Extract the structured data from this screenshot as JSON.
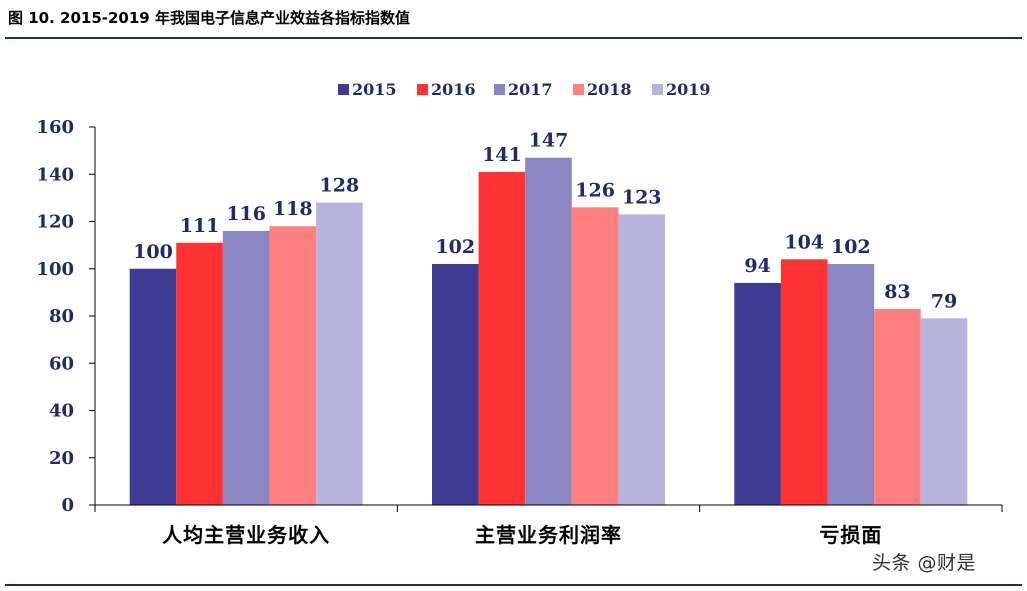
{
  "figure": {
    "title": "图 10. 2015-2019 年我国电子信息产业效益各指标指数值"
  },
  "watermark": "头条 @财是",
  "chart_data": {
    "type": "bar",
    "title": "",
    "xlabel": "",
    "ylabel": "",
    "categories": [
      "人均主营业务收入",
      "主营业务利润率",
      "亏损面"
    ],
    "series": [
      {
        "name": "2015",
        "color": "#3f3a93",
        "values": [
          100,
          102,
          94
        ]
      },
      {
        "name": "2016",
        "color": "#ff3333",
        "values": [
          111,
          141,
          104
        ]
      },
      {
        "name": "2017",
        "color": "#8b85c1",
        "values": [
          116,
          147,
          102
        ]
      },
      {
        "name": "2018",
        "color": "#ff8080",
        "values": [
          118,
          126,
          83
        ]
      },
      {
        "name": "2019",
        "color": "#b8b3dc",
        "values": [
          128,
          123,
          79
        ]
      }
    ],
    "ylim": [
      0,
      160
    ],
    "yticks": [
      0,
      20,
      40,
      60,
      80,
      100,
      120,
      140,
      160
    ],
    "data_labels": true,
    "grid": false,
    "legend": "top-center"
  }
}
